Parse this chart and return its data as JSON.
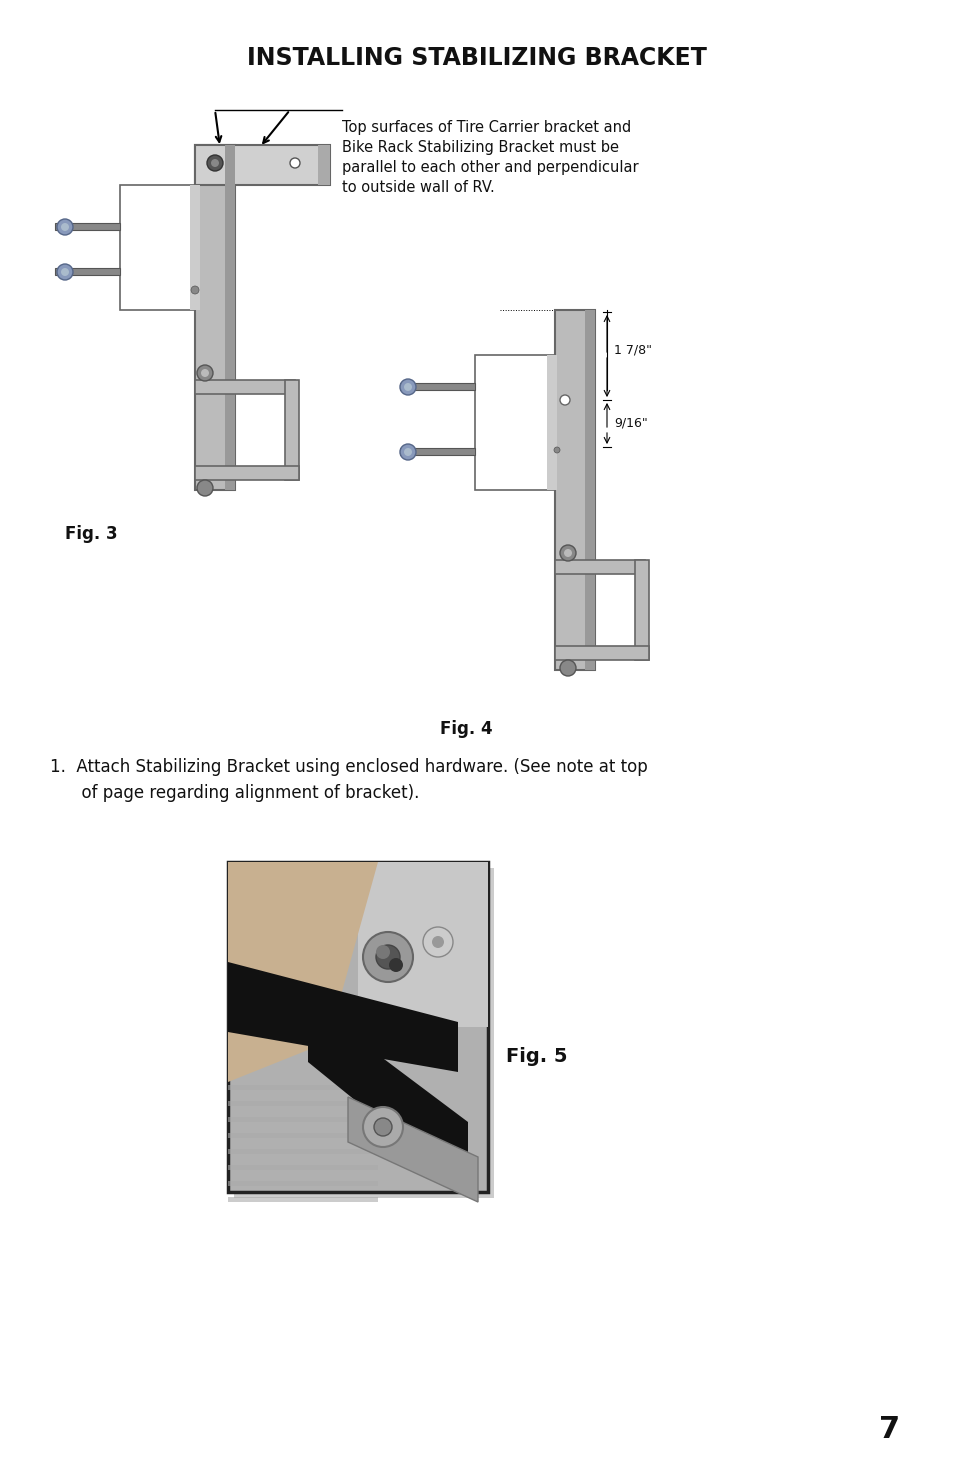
{
  "title": "INSTALLING STABILIZING BRACKET",
  "page_number": "7",
  "background_color": "#ffffff",
  "title_color": "#111111",
  "note_text_line1": "Top surfaces of Tire Carrier bracket and",
  "note_text_line2": "Bike Rack Stabilizing Bracket must be",
  "note_text_line3": "parallel to each other and perpendicular",
  "note_text_line4": "to outside wall of RV.",
  "step1_line1": "1.  Attach Stabilizing Bracket using enclosed hardware. (See note at top",
  "step1_line2": "      of page regarding alignment of bracket).",
  "fig3_label": "Fig. 3",
  "fig4_label": "Fig. 4",
  "fig5_label": "Fig. 5",
  "dim1": "1 7/8\"",
  "dim2": "9/16\"",
  "plate_gray": "#b8b8b8",
  "plate_dark": "#888888",
  "plate_light": "#d8d8d8",
  "bolt_blue": "#7788aa",
  "photo_border": "#222222",
  "photo_bg_top": "#c8c8c8",
  "photo_bg_bot": "#888888",
  "photo_black_bar": "#1a1a1a",
  "photo_hand": "#d0b090",
  "photo_metal": "#aaaaaa"
}
